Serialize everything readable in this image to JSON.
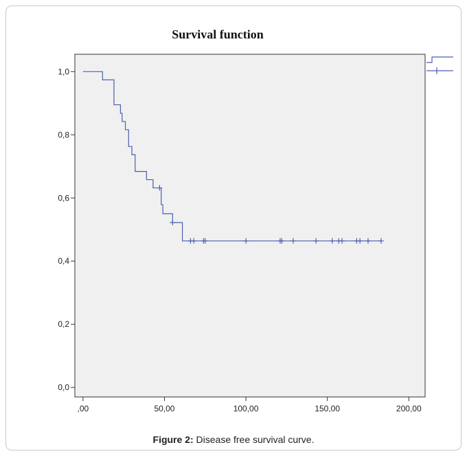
{
  "figure": {
    "caption_label": "Figure 2:",
    "caption_text": "Disease free survival curve."
  },
  "chart_data": {
    "type": "line",
    "title": "Survival function",
    "xlabel": "",
    "ylabel": "",
    "xlim": [
      -5,
      210
    ],
    "ylim": [
      -0.03,
      1.055
    ],
    "x_ticks": [
      0,
      50,
      100,
      150,
      200
    ],
    "x_tick_labels": [
      ",00",
      "50,00",
      "100,00",
      "150,00",
      "200,00"
    ],
    "y_ticks": [
      0,
      0.2,
      0.4,
      0.6,
      0.8,
      1.0
    ],
    "y_tick_labels": [
      "0,0",
      "0,2",
      "0,4",
      "0,6",
      "0,8",
      "1,0"
    ],
    "grid": false,
    "plot_background": "#f0f0f0",
    "series_color": "#4a5fb0",
    "legend": {
      "placement": "top-right (cropped)",
      "entries": [
        {
          "marker": "step-line"
        },
        {
          "marker": "censored-plus"
        }
      ]
    },
    "series": [
      {
        "steps": [
          {
            "x": 0,
            "y": 1.0
          },
          {
            "x": 12,
            "y": 0.974
          },
          {
            "x": 19,
            "y": 0.895
          },
          {
            "x": 23,
            "y": 0.868
          },
          {
            "x": 24,
            "y": 0.842
          },
          {
            "x": 26,
            "y": 0.816
          },
          {
            "x": 28,
            "y": 0.763
          },
          {
            "x": 30,
            "y": 0.737
          },
          {
            "x": 32,
            "y": 0.684
          },
          {
            "x": 39,
            "y": 0.658
          },
          {
            "x": 43,
            "y": 0.632
          },
          {
            "x": 48,
            "y": 0.579
          },
          {
            "x": 49,
            "y": 0.55
          },
          {
            "x": 55,
            "y": 0.522
          },
          {
            "x": 61,
            "y": 0.464
          },
          {
            "x": 183,
            "y": 0.464
          }
        ],
        "censored": [
          {
            "x": 47,
            "y": 0.632
          },
          {
            "x": 55,
            "y": 0.522
          },
          {
            "x": 66,
            "y": 0.464
          },
          {
            "x": 68,
            "y": 0.464
          },
          {
            "x": 74,
            "y": 0.464
          },
          {
            "x": 75,
            "y": 0.464
          },
          {
            "x": 100,
            "y": 0.464
          },
          {
            "x": 121,
            "y": 0.464
          },
          {
            "x": 122,
            "y": 0.464
          },
          {
            "x": 129,
            "y": 0.464
          },
          {
            "x": 143,
            "y": 0.464
          },
          {
            "x": 153,
            "y": 0.464
          },
          {
            "x": 157,
            "y": 0.464
          },
          {
            "x": 159,
            "y": 0.464
          },
          {
            "x": 168,
            "y": 0.464
          },
          {
            "x": 170,
            "y": 0.464
          },
          {
            "x": 175,
            "y": 0.464
          },
          {
            "x": 183,
            "y": 0.464
          }
        ]
      }
    ]
  }
}
